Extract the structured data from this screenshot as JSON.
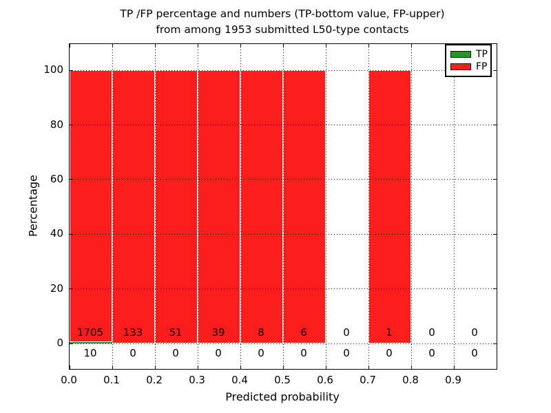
{
  "title": {
    "line1": "TP /FP percentage and numbers (TP-bottom value, FP-upper)",
    "line2": "from among 1953 submitted L50-type contacts"
  },
  "chart_data": {
    "type": "bar",
    "stacked": true,
    "title": "TP /FP percentage and numbers (TP-bottom value, FP-upper) from among 1953 submitted L50-type contacts",
    "xlabel": "Predicted probability",
    "ylabel": "Percentage",
    "bin_edges": [
      0.0,
      0.1,
      0.2,
      0.3,
      0.4,
      0.5,
      0.6,
      0.7,
      0.8,
      0.9,
      1.0
    ],
    "series": [
      {
        "name": "TP",
        "color": "#1e9b1e",
        "counts": [
          10,
          0,
          0,
          0,
          0,
          0,
          0,
          0,
          0,
          0
        ]
      },
      {
        "name": "FP",
        "color": "#fb1c1c",
        "counts": [
          1705,
          133,
          51,
          39,
          8,
          6,
          0,
          1,
          0,
          0
        ]
      }
    ],
    "bar_heights_note": "each non-empty bin stacks TP then FP as percent of bin total, totalling 100",
    "annotation_rows": {
      "upper": "FP",
      "lower": "TP"
    },
    "xtick_labels": [
      "0.0",
      "0.1",
      "0.2",
      "0.3",
      "0.4",
      "0.5",
      "0.6",
      "0.7",
      "0.8",
      "0.9"
    ],
    "xtick_values": [
      0.0,
      0.1,
      0.2,
      0.3,
      0.4,
      0.5,
      0.6,
      0.7,
      0.8,
      0.9
    ],
    "ytick_labels": [
      "0",
      "20",
      "40",
      "60",
      "80",
      "100"
    ],
    "ytick_values": [
      0,
      20,
      40,
      60,
      80,
      100
    ],
    "xlim": [
      0.0,
      1.0
    ],
    "ylim": [
      -9.3,
      109.6
    ],
    "grid": {
      "style": "dotted",
      "color": "#000000",
      "x_values": [
        0.1,
        0.2,
        0.3,
        0.4,
        0.5,
        0.6,
        0.7,
        0.8,
        0.9
      ],
      "y_values": [
        0,
        20,
        40,
        60,
        80,
        100
      ]
    },
    "legend": {
      "position": "upper-right",
      "entries": [
        {
          "label": "TP",
          "color": "#1e9b1e"
        },
        {
          "label": "FP",
          "color": "#fb1c1c"
        }
      ]
    },
    "frame_color": "#000000",
    "bar_edge_color": "#ffffff"
  }
}
